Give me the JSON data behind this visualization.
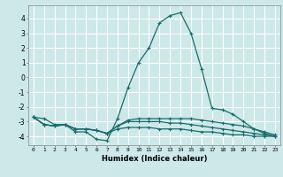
{
  "xlabel": "Humidex (Indice chaleur)",
  "bg_color": "#cce8e8",
  "grid_color": "#ffffff",
  "line_color": "#1a6b6b",
  "xlim": [
    -0.5,
    23.5
  ],
  "ylim": [
    -4.6,
    4.9
  ],
  "yticks": [
    -4,
    -3,
    -2,
    -1,
    0,
    1,
    2,
    3,
    4
  ],
  "xticks": [
    0,
    1,
    2,
    3,
    4,
    5,
    6,
    7,
    8,
    9,
    10,
    11,
    12,
    13,
    14,
    15,
    16,
    17,
    18,
    19,
    20,
    21,
    22,
    23
  ],
  "series": [
    {
      "x": [
        0,
        1,
        2,
        3,
        4,
        5,
        6,
        7,
        8,
        9,
        10,
        11,
        12,
        13,
        14,
        15,
        16,
        17,
        18,
        19,
        20,
        21,
        22,
        23
      ],
      "y": [
        -2.7,
        -2.8,
        -3.2,
        -3.2,
        -3.7,
        -3.7,
        -4.2,
        -4.3,
        -2.8,
        -0.7,
        1.0,
        2.0,
        3.7,
        4.2,
        4.4,
        3.0,
        0.6,
        -2.1,
        -2.2,
        -2.5,
        -3.0,
        -3.5,
        -3.8,
        -4.0
      ],
      "marker": true
    },
    {
      "x": [
        0,
        1,
        2,
        3,
        4,
        5,
        6,
        7,
        8,
        9,
        10,
        11,
        12,
        13,
        14,
        15,
        16,
        17,
        18,
        19,
        20,
        21,
        22,
        23
      ],
      "y": [
        -2.7,
        -3.2,
        -3.3,
        -3.2,
        -3.5,
        -3.5,
        -3.6,
        -3.8,
        -3.3,
        -2.9,
        -2.8,
        -2.8,
        -2.8,
        -2.8,
        -2.8,
        -2.8,
        -2.9,
        -3.0,
        -3.1,
        -3.2,
        -3.3,
        -3.5,
        -3.7,
        -3.9
      ],
      "marker": true
    },
    {
      "x": [
        0,
        1,
        2,
        3,
        4,
        5,
        6,
        7,
        8,
        9,
        10,
        11,
        12,
        13,
        14,
        15,
        16,
        17,
        18,
        19,
        20,
        21,
        22,
        23
      ],
      "y": [
        -2.7,
        -3.2,
        -3.3,
        -3.2,
        -3.5,
        -3.5,
        -3.6,
        -3.8,
        -3.3,
        -3.0,
        -3.0,
        -3.0,
        -3.0,
        -3.1,
        -3.1,
        -3.2,
        -3.3,
        -3.4,
        -3.5,
        -3.6,
        -3.7,
        -3.8,
        -3.9,
        -4.0
      ],
      "marker": true
    },
    {
      "x": [
        0,
        1,
        2,
        3,
        4,
        5,
        6,
        7,
        8,
        9,
        10,
        11,
        12,
        13,
        14,
        15,
        16,
        17,
        18,
        19,
        20,
        21,
        22,
        23
      ],
      "y": [
        -2.7,
        -3.2,
        -3.3,
        -3.2,
        -3.5,
        -3.5,
        -3.6,
        -3.8,
        -3.5,
        -3.4,
        -3.4,
        -3.4,
        -3.5,
        -3.5,
        -3.5,
        -3.6,
        -3.7,
        -3.7,
        -3.8,
        -3.9,
        -3.9,
        -4.0,
        -4.0,
        -4.0
      ],
      "marker": true
    }
  ]
}
